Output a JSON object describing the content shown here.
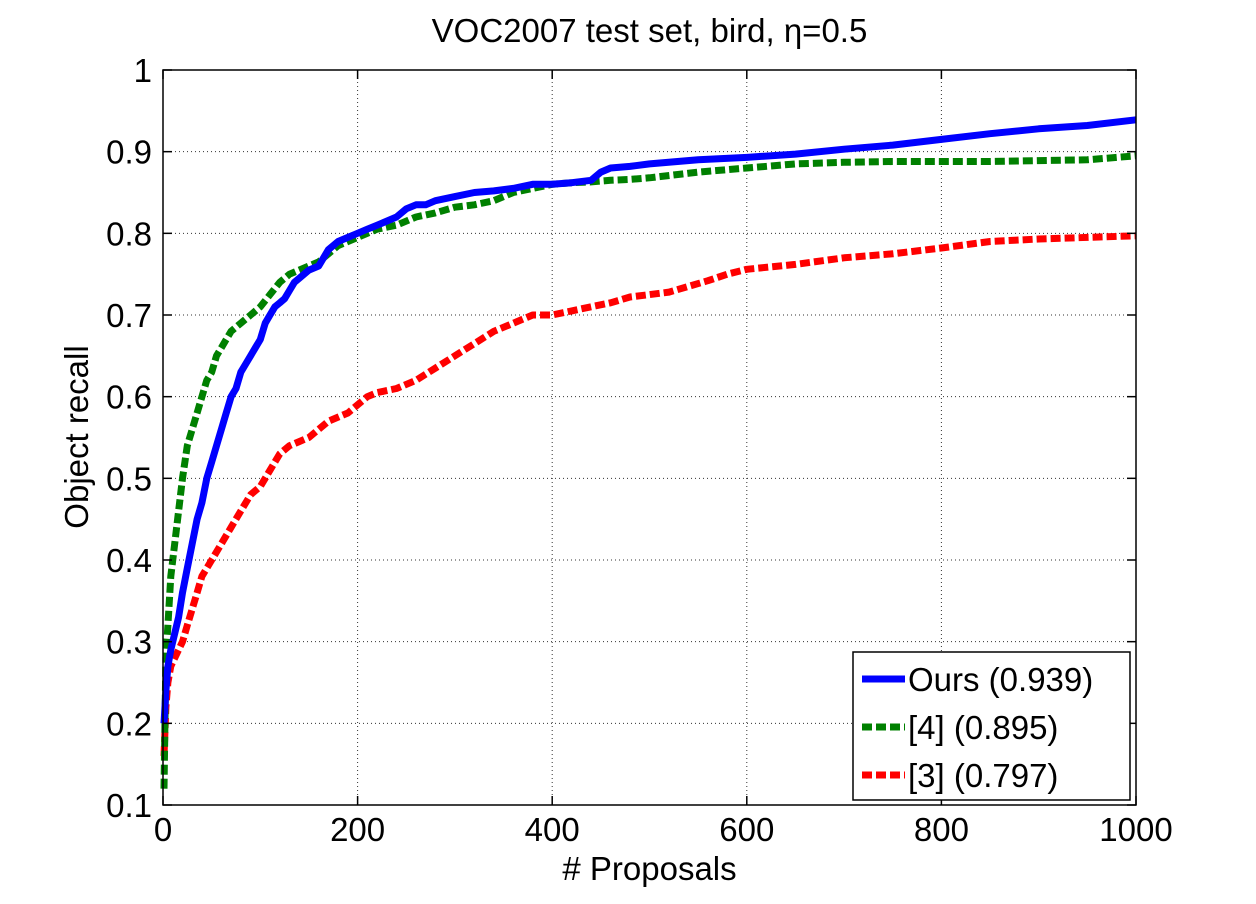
{
  "chart_data": {
    "type": "line",
    "title": "VOC2007 test set, bird, η=0.5",
    "xlabel": "# Proposals",
    "ylabel": "Object recall",
    "xlim": [
      0,
      1000
    ],
    "ylim": [
      0.1,
      1
    ],
    "xticks": [
      0,
      200,
      400,
      600,
      800,
      1000
    ],
    "yticks": [
      0.1,
      0.2,
      0.3,
      0.4,
      0.5,
      0.6,
      0.7,
      0.8,
      0.9,
      1
    ],
    "xtick_labels": [
      "0",
      "200",
      "400",
      "600",
      "800",
      "1000"
    ],
    "ytick_labels": [
      "0.1",
      "0.2",
      "0.3",
      "0.4",
      "0.5",
      "0.6",
      "0.7",
      "0.8",
      "0.9",
      "1"
    ],
    "grid": true,
    "legend_position": "bottom-right",
    "series": [
      {
        "name": "Ours (0.939)",
        "color": "#0000ff",
        "style": "solid",
        "x": [
          1,
          3,
          5,
          8,
          12,
          16,
          20,
          25,
          30,
          35,
          40,
          45,
          50,
          55,
          60,
          65,
          70,
          75,
          80,
          85,
          90,
          95,
          100,
          105,
          110,
          115,
          120,
          125,
          130,
          135,
          140,
          150,
          160,
          170,
          180,
          190,
          200,
          210,
          220,
          230,
          240,
          250,
          260,
          270,
          280,
          300,
          320,
          340,
          360,
          380,
          400,
          420,
          440,
          450,
          460,
          480,
          500,
          550,
          600,
          650,
          700,
          750,
          800,
          850,
          900,
          950,
          1000
        ],
        "y": [
          0.2,
          0.24,
          0.27,
          0.29,
          0.31,
          0.33,
          0.36,
          0.39,
          0.42,
          0.45,
          0.47,
          0.5,
          0.52,
          0.54,
          0.56,
          0.58,
          0.6,
          0.61,
          0.63,
          0.64,
          0.65,
          0.66,
          0.67,
          0.69,
          0.7,
          0.71,
          0.715,
          0.72,
          0.73,
          0.74,
          0.745,
          0.755,
          0.76,
          0.78,
          0.79,
          0.795,
          0.8,
          0.805,
          0.81,
          0.815,
          0.82,
          0.83,
          0.835,
          0.835,
          0.84,
          0.845,
          0.85,
          0.852,
          0.855,
          0.86,
          0.86,
          0.862,
          0.865,
          0.875,
          0.88,
          0.882,
          0.885,
          0.89,
          0.893,
          0.897,
          0.903,
          0.908,
          0.915,
          0.922,
          0.928,
          0.932,
          0.939
        ]
      },
      {
        "name": "[4] (0.895)",
        "color": "#008000",
        "style": "dashed",
        "x": [
          1,
          3,
          5,
          8,
          12,
          16,
          20,
          25,
          30,
          35,
          40,
          45,
          50,
          55,
          60,
          65,
          70,
          80,
          90,
          100,
          110,
          120,
          130,
          140,
          150,
          160,
          170,
          180,
          190,
          200,
          220,
          240,
          260,
          280,
          300,
          320,
          340,
          360,
          380,
          400,
          420,
          440,
          460,
          480,
          500,
          550,
          600,
          650,
          700,
          750,
          800,
          850,
          900,
          950,
          1000
        ],
        "y": [
          0.12,
          0.28,
          0.32,
          0.38,
          0.42,
          0.46,
          0.5,
          0.54,
          0.56,
          0.58,
          0.6,
          0.62,
          0.63,
          0.65,
          0.66,
          0.67,
          0.68,
          0.69,
          0.7,
          0.71,
          0.725,
          0.74,
          0.75,
          0.755,
          0.76,
          0.765,
          0.775,
          0.785,
          0.79,
          0.795,
          0.805,
          0.81,
          0.82,
          0.825,
          0.832,
          0.835,
          0.84,
          0.85,
          0.855,
          0.86,
          0.862,
          0.863,
          0.865,
          0.866,
          0.868,
          0.875,
          0.88,
          0.885,
          0.887,
          0.888,
          0.888,
          0.888,
          0.889,
          0.89,
          0.895
        ]
      },
      {
        "name": "[3] (0.797)",
        "color": "#ff0000",
        "style": "dashed",
        "x": [
          1,
          3,
          5,
          8,
          12,
          16,
          20,
          25,
          30,
          35,
          40,
          50,
          60,
          70,
          80,
          90,
          100,
          110,
          120,
          130,
          140,
          150,
          160,
          170,
          180,
          190,
          200,
          210,
          220,
          240,
          260,
          280,
          300,
          320,
          340,
          360,
          380,
          400,
          420,
          440,
          460,
          480,
          500,
          520,
          540,
          560,
          580,
          600,
          650,
          700,
          750,
          800,
          850,
          900,
          950,
          1000
        ],
        "y": [
          0.16,
          0.22,
          0.25,
          0.27,
          0.28,
          0.29,
          0.3,
          0.32,
          0.34,
          0.36,
          0.38,
          0.4,
          0.42,
          0.44,
          0.46,
          0.48,
          0.49,
          0.51,
          0.53,
          0.54,
          0.545,
          0.55,
          0.56,
          0.57,
          0.575,
          0.58,
          0.59,
          0.6,
          0.605,
          0.61,
          0.62,
          0.635,
          0.65,
          0.665,
          0.68,
          0.69,
          0.7,
          0.7,
          0.705,
          0.71,
          0.715,
          0.722,
          0.725,
          0.728,
          0.735,
          0.742,
          0.75,
          0.756,
          0.762,
          0.77,
          0.775,
          0.782,
          0.79,
          0.793,
          0.795,
          0.797
        ]
      }
    ]
  }
}
